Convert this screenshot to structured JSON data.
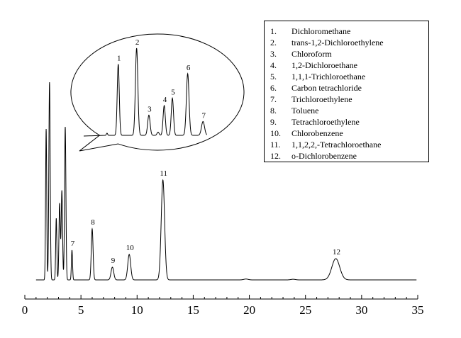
{
  "chart_data": {
    "type": "line",
    "title": "",
    "xlabel": "",
    "ylabel": "",
    "xlim": [
      0,
      35
    ],
    "x_ticks": [
      "0",
      "5",
      "10",
      "15",
      "20",
      "25",
      "30",
      "35"
    ],
    "grid": false,
    "legend_position": "top-right",
    "line_color": "#000000",
    "series": [
      {
        "peaks": [
          {
            "t": 1.9,
            "h": 0.71,
            "w": 0.05
          },
          {
            "t": 2.2,
            "h": 0.93,
            "w": 0.06
          },
          {
            "t": 2.8,
            "h": 0.29,
            "w": 0.05
          },
          {
            "t": 3.1,
            "h": 0.36,
            "w": 0.06
          },
          {
            "t": 3.3,
            "h": 0.42,
            "w": 0.06
          },
          {
            "t": 3.6,
            "h": 0.72,
            "w": 0.06
          },
          {
            "t": 4.2,
            "h": 0.14,
            "w": 0.05
          },
          {
            "t": 6.0,
            "h": 0.24,
            "w": 0.08
          },
          {
            "t": 7.8,
            "h": 0.06,
            "w": 0.12
          },
          {
            "t": 9.3,
            "h": 0.12,
            "w": 0.13
          },
          {
            "t": 12.3,
            "h": 0.47,
            "w": 0.15
          },
          {
            "t": 27.7,
            "h": 0.1,
            "w": 0.35
          }
        ]
      }
    ],
    "peak_labels": [
      {
        "label": "7",
        "t": 4.2,
        "h": 0.14
      },
      {
        "label": "8",
        "t": 6.0,
        "h": 0.24
      },
      {
        "label": "9",
        "t": 7.8,
        "h": 0.06
      },
      {
        "label": "10",
        "t": 9.3,
        "h": 0.12
      },
      {
        "label": "11",
        "t": 12.3,
        "h": 0.47
      },
      {
        "label": "12",
        "t": 27.7,
        "h": 0.1
      }
    ],
    "inset": {
      "peaks": [
        {
          "n": "1",
          "p": 0.13,
          "h": 0.67,
          "w": 0.01
        },
        {
          "n": "2",
          "p": 0.31,
          "h": 0.82,
          "w": 0.012
        },
        {
          "n": "3",
          "p": 0.43,
          "h": 0.19,
          "w": 0.012
        },
        {
          "n": "4",
          "p": 0.58,
          "h": 0.28,
          "w": 0.011
        },
        {
          "n": "5",
          "p": 0.66,
          "h": 0.35,
          "w": 0.011
        },
        {
          "n": "6",
          "p": 0.81,
          "h": 0.58,
          "w": 0.013
        },
        {
          "n": "7",
          "p": 0.96,
          "h": 0.13,
          "w": 0.015
        }
      ]
    },
    "legend": [
      {
        "num": "1.",
        "name": "Dichloromethane"
      },
      {
        "num": "2.",
        "name": "trans-1,2-Dichloroethylene"
      },
      {
        "num": "3.",
        "name": "Chloroform"
      },
      {
        "num": "4.",
        "name": "1,2-Dichloroethane"
      },
      {
        "num": "5.",
        "name": "1,1,1-Trichloroethane"
      },
      {
        "num": "6.",
        "name": "Carbon tetrachloride"
      },
      {
        "num": "7.",
        "name": "Trichloroethylene"
      },
      {
        "num": "8.",
        "name": "Toluene"
      },
      {
        "num": "9.",
        "name": "Tetrachloroethylene"
      },
      {
        "num": "10.",
        "name": "Chlorobenzene"
      },
      {
        "num": "11.",
        "name": "1,1,2,2,-Tetrachloroethane"
      },
      {
        "num": "12.",
        "name": "o-Dichlorobenzene"
      }
    ]
  }
}
